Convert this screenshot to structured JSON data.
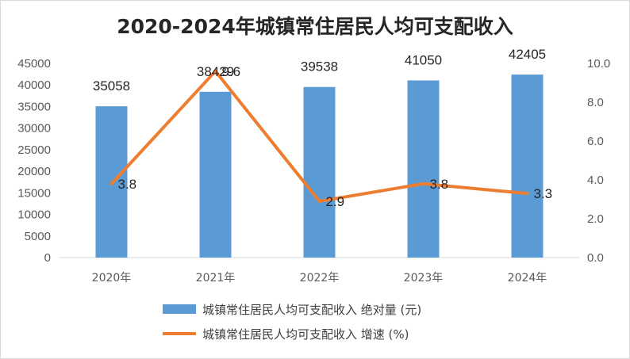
{
  "chart_data": {
    "type": "bar+line",
    "title": "2020-2024年城镇常住居民人均可支配收入",
    "categories": [
      "2020年",
      "2021年",
      "2022年",
      "2023年",
      "2024年"
    ],
    "series": [
      {
        "name": "城镇常住居民人均可支配收入 绝对量 (元)",
        "type": "bar",
        "axis": "left",
        "color": "#5b9bd5",
        "values": [
          35058,
          38429,
          39538,
          41050,
          42405
        ]
      },
      {
        "name": "城镇常住居民人均可支配收入 增速 (%)",
        "type": "line",
        "axis": "right",
        "color": "#ed7d31",
        "values": [
          3.8,
          9.6,
          2.9,
          3.8,
          3.3
        ]
      }
    ],
    "y_left": {
      "min": 0,
      "max": 45000,
      "step": 5000,
      "ticks": [
        "0",
        "5000",
        "10000",
        "15000",
        "20000",
        "25000",
        "30000",
        "35000",
        "40000",
        "45000"
      ]
    },
    "y_right": {
      "min": 0,
      "max": 10,
      "step": 2,
      "ticks": [
        "0.0",
        "2.0",
        "4.0",
        "6.0",
        "8.0",
        "10.0"
      ]
    },
    "grid": false,
    "legend_position": "bottom"
  }
}
